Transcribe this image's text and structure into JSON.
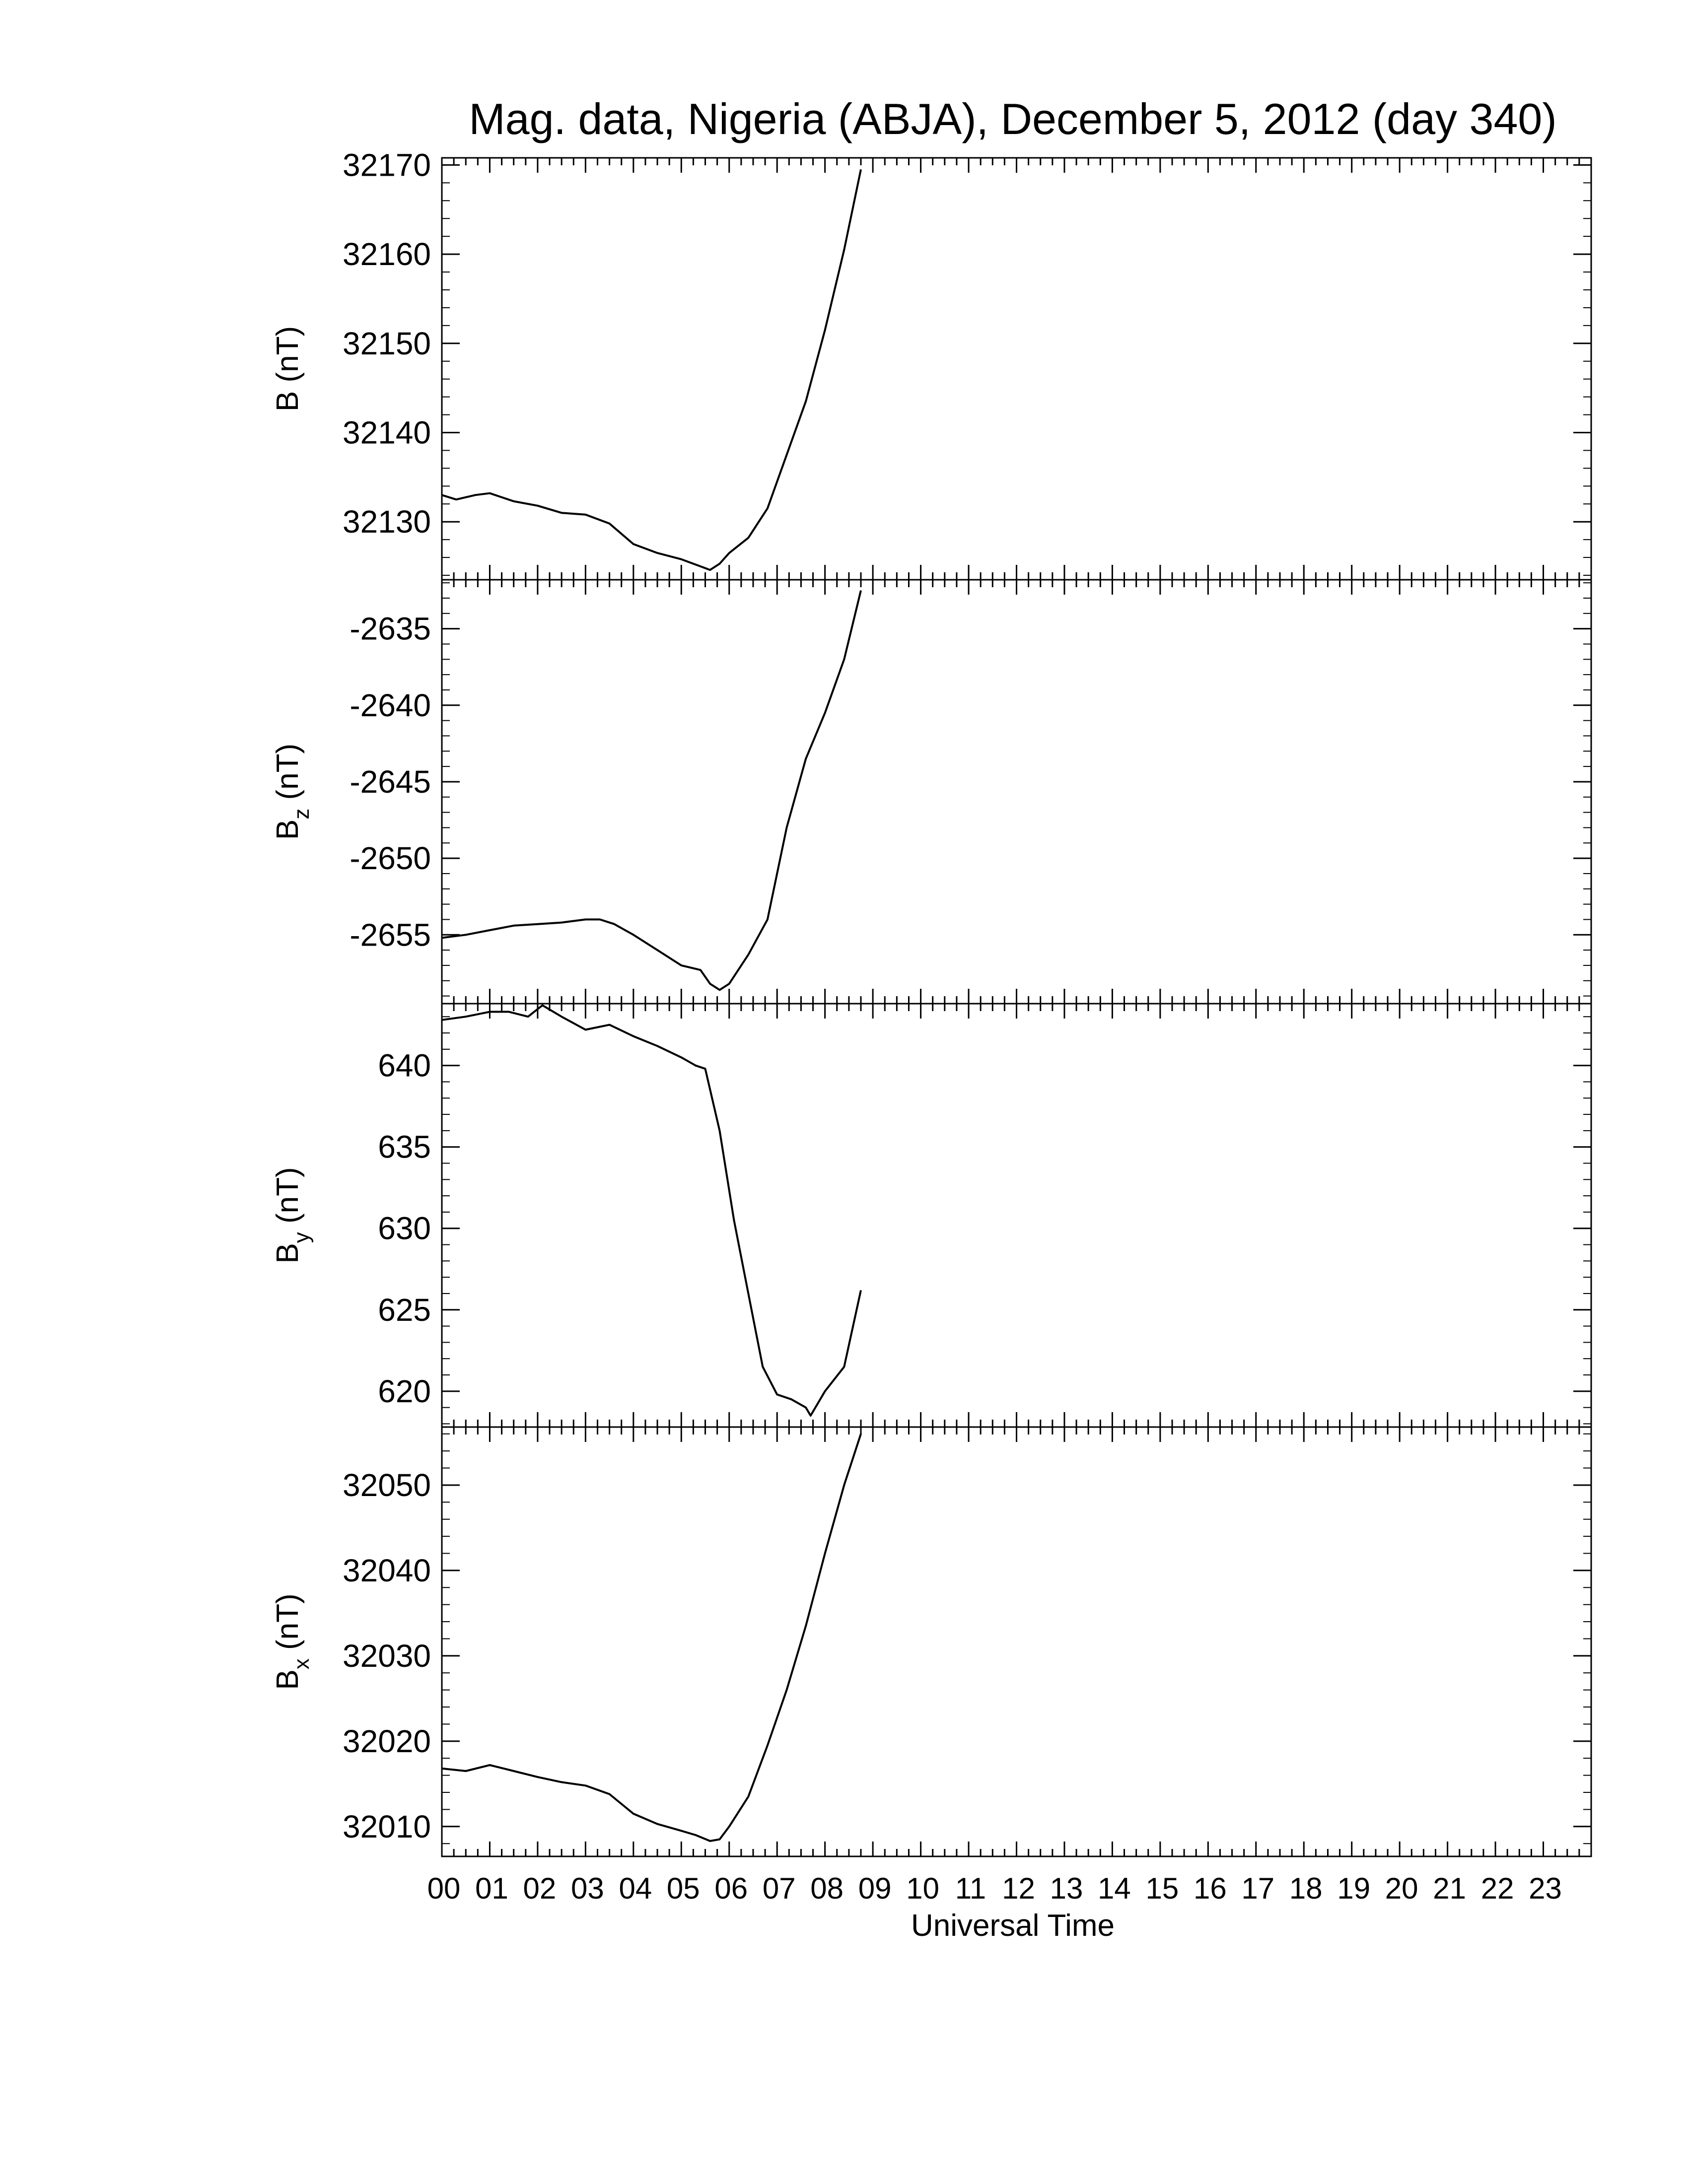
{
  "chart_data": {
    "type": "line",
    "title": "Mag. data, Nigeria (ABJA), December 5, 2012 (day 340)",
    "xlabel": "Universal Time",
    "x_tick_labels": [
      "00",
      "01",
      "02",
      "03",
      "04",
      "05",
      "06",
      "07",
      "08",
      "09",
      "10",
      "11",
      "12",
      "13",
      "14",
      "15",
      "16",
      "17",
      "18",
      "19",
      "20",
      "21",
      "22",
      "23"
    ],
    "xlim": [
      0,
      24
    ],
    "panels": [
      {
        "ylabel_main": "B",
        "ylabel_sub": "",
        "ylabel_unit": "(nT)",
        "ylim": [
          32123.5,
          32170.8
        ],
        "yticks": [
          32130,
          32140,
          32150,
          32160,
          32170
        ],
        "ytick_labels": [
          "32130",
          "32140",
          "32150",
          "32160",
          "32170"
        ],
        "x": [
          0,
          0.3,
          0.7,
          1.0,
          1.5,
          2.0,
          2.5,
          3.0,
          3.5,
          4.0,
          4.5,
          5.0,
          5.4,
          5.6,
          5.8,
          6.0,
          6.4,
          6.8,
          7.2,
          7.6,
          8.0,
          8.4,
          8.75
        ],
        "values": [
          32133.0,
          32132.5,
          32133.0,
          32133.2,
          32132.3,
          32131.8,
          32131.0,
          32130.8,
          32129.8,
          32127.5,
          32126.5,
          32125.8,
          32125.0,
          32124.6,
          32125.3,
          32126.5,
          32128.2,
          32131.5,
          32137.5,
          32143.5,
          32151.5,
          32160.5,
          32169.5
        ]
      },
      {
        "ylabel_main": "B",
        "ylabel_sub": "z",
        "ylabel_unit": "(nT)",
        "ylim": [
          -2659.5,
          -2631.8
        ],
        "yticks": [
          -2655,
          -2650,
          -2645,
          -2640,
          -2635
        ],
        "ytick_labels": [
          "-2655",
          "-2650",
          "-2645",
          "-2640",
          "-2635"
        ],
        "x": [
          0,
          0.5,
          1.0,
          1.5,
          2.0,
          2.5,
          3.0,
          3.3,
          3.6,
          4.0,
          4.5,
          5.0,
          5.4,
          5.6,
          5.8,
          6.0,
          6.4,
          6.8,
          7.2,
          7.6,
          8.0,
          8.4,
          8.75
        ],
        "values": [
          -2655.2,
          -2655.0,
          -2654.7,
          -2654.4,
          -2654.3,
          -2654.2,
          -2654.0,
          -2654.0,
          -2654.3,
          -2655.0,
          -2656.0,
          -2657.0,
          -2657.3,
          -2658.2,
          -2658.6,
          -2658.2,
          -2656.3,
          -2654.0,
          -2648.0,
          -2643.5,
          -2640.5,
          -2637.0,
          -2632.5
        ]
      },
      {
        "ylabel_main": "B",
        "ylabel_sub": "y",
        "ylabel_unit": "(nT)",
        "ylim": [
          617.8,
          643.8
        ],
        "yticks": [
          620,
          625,
          630,
          635,
          640
        ],
        "ytick_labels": [
          "620",
          "625",
          "630",
          "635",
          "640"
        ],
        "x": [
          0,
          0.5,
          1.0,
          1.4,
          1.8,
          2.1,
          2.5,
          3.0,
          3.5,
          4.0,
          4.5,
          5.0,
          5.3,
          5.5,
          5.8,
          6.1,
          6.4,
          6.7,
          7.0,
          7.3,
          7.6,
          7.7,
          8.0,
          8.4,
          8.75
        ],
        "values": [
          642.8,
          643.0,
          643.3,
          643.3,
          643.0,
          643.7,
          643.0,
          642.2,
          642.5,
          641.8,
          641.2,
          640.5,
          640.0,
          639.8,
          636.0,
          630.5,
          626.0,
          621.5,
          619.8,
          619.5,
          619.0,
          618.5,
          620.0,
          621.5,
          626.2
        ]
      },
      {
        "ylabel_main": "B",
        "ylabel_sub": "x",
        "ylabel_unit": "(nT)",
        "ylim": [
          32006.5,
          32056.8
        ],
        "yticks": [
          32010,
          32020,
          32030,
          32040,
          32050
        ],
        "ytick_labels": [
          "32010",
          "32020",
          "32030",
          "32040",
          "32050"
        ],
        "x": [
          0,
          0.5,
          1.0,
          1.5,
          2.0,
          2.5,
          3.0,
          3.5,
          4.0,
          4.5,
          5.0,
          5.3,
          5.6,
          5.8,
          6.0,
          6.4,
          6.8,
          7.2,
          7.6,
          8.0,
          8.4,
          8.75
        ],
        "values": [
          32016.8,
          32016.5,
          32017.2,
          32016.5,
          32015.8,
          32015.2,
          32014.8,
          32013.8,
          32011.5,
          32010.3,
          32009.5,
          32009.0,
          32008.3,
          32008.5,
          32010.0,
          32013.5,
          32019.5,
          32026.0,
          32033.5,
          32042.0,
          32050.0,
          32056.0
        ]
      }
    ]
  }
}
